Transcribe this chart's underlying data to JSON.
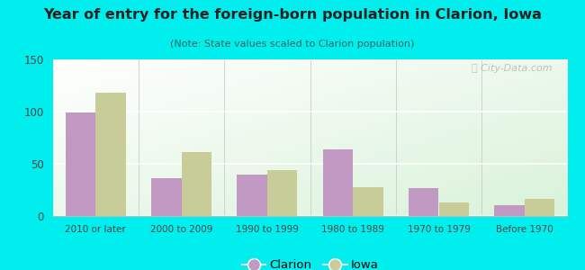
{
  "title": "Year of entry for the foreign-born population in Clarion, Iowa",
  "subtitle": "(Note: State values scaled to Clarion population)",
  "categories": [
    "2010 or later",
    "2000 to 2009",
    "1990 to 1999",
    "1980 to 1989",
    "1970 to 1979",
    "Before 1970"
  ],
  "clarion_values": [
    99,
    36,
    40,
    64,
    27,
    10
  ],
  "iowa_values": [
    118,
    61,
    44,
    28,
    13,
    16
  ],
  "clarion_color": "#c299c2",
  "iowa_color": "#c8cc99",
  "background_color": "#00eeee",
  "ylim": [
    0,
    150
  ],
  "yticks": [
    0,
    50,
    100,
    150
  ],
  "bar_width": 0.35,
  "legend_labels": [
    "Clarion",
    "Iowa"
  ],
  "watermark": "ⓘ City-Data.com",
  "title_color": "#222222",
  "subtitle_color": "#336666",
  "tick_color": "#444444",
  "grid_color": "#dddddd"
}
